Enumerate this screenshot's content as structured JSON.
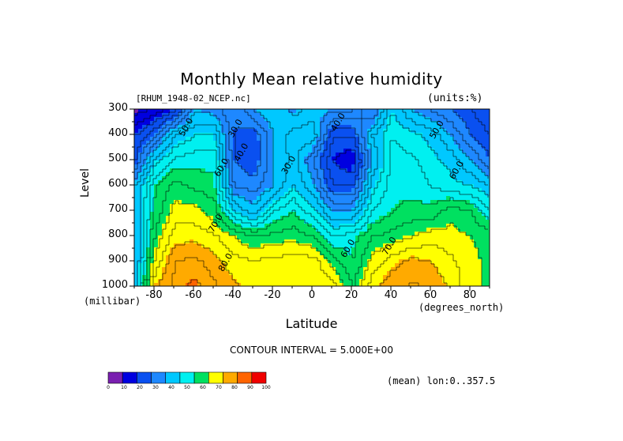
{
  "page": {
    "title": "Monthly Mean relative humidity",
    "file_tag": "[RHUM_1948-02_NCEP.nc]",
    "units_tag": "(units:%)",
    "contour_note": "CONTOUR INTERVAL = 5.000E+00",
    "mean_note": "(mean) lon:0..357.5"
  },
  "chart_data": {
    "type": "heatmap",
    "title": "Monthly Mean relative humidity",
    "xlabel": "Latitude",
    "x_units": "(degrees_north)",
    "ylabel": "Level",
    "y_units": "(millibar)",
    "xlim": [
      -90,
      90
    ],
    "ylim": [
      1000,
      300
    ],
    "x_ticks": [
      -80,
      -60,
      -40,
      -20,
      0,
      20,
      40,
      60,
      80
    ],
    "x_tick_labels": [
      "-80",
      "-60",
      "-40",
      "-20",
      "0",
      "20",
      "40",
      "60",
      "80"
    ],
    "y_ticks": [
      300,
      400,
      500,
      600,
      700,
      800,
      900,
      1000
    ],
    "y_tick_labels": [
      "300",
      "400",
      "500",
      "600",
      "700",
      "800",
      "900",
      "1000"
    ],
    "contour_interval": 5,
    "contour_labels": [
      {
        "text": "50.0",
        "x": -65,
        "y": 410
      },
      {
        "text": "30.0",
        "x": -40,
        "y": 415
      },
      {
        "text": "40.0",
        "x": -37,
        "y": 510
      },
      {
        "text": "60.0",
        "x": -47,
        "y": 570
      },
      {
        "text": "70.0",
        "x": -50,
        "y": 790
      },
      {
        "text": "80.0",
        "x": -45,
        "y": 945
      },
      {
        "text": "30.0",
        "x": -13,
        "y": 560
      },
      {
        "text": "40.0",
        "x": 12,
        "y": 390
      },
      {
        "text": "60.0",
        "x": 17,
        "y": 890
      },
      {
        "text": "70.0",
        "x": 38,
        "y": 880
      },
      {
        "text": "50.0",
        "x": 62,
        "y": 420
      },
      {
        "text": "60.0",
        "x": 72,
        "y": 580
      }
    ],
    "colorbar": {
      "levels": [
        0,
        10,
        20,
        30,
        40,
        50,
        60,
        70,
        80,
        90,
        100
      ],
      "labels": [
        "0",
        "10",
        "20",
        "30",
        "40",
        "50",
        "60",
        "70",
        "80",
        "90",
        "100"
      ],
      "colors": [
        "#7a1fb0",
        "#0000e0",
        "#0a50f0",
        "#1e88ff",
        "#00c8ff",
        "#00f0f0",
        "#00e060",
        "#ffff00",
        "#ffaa00",
        "#ff6400",
        "#f00000"
      ]
    },
    "levels_grid": [
      300,
      400,
      500,
      600,
      700,
      800,
      900,
      1000
    ],
    "lat_grid": [
      -90,
      -80,
      -70,
      -60,
      -50,
      -40,
      -30,
      -20,
      -10,
      0,
      10,
      20,
      30,
      40,
      50,
      60,
      70,
      80,
      90
    ],
    "values": [
      [
        8,
        12,
        20,
        40,
        38,
        30,
        40,
        45,
        38,
        43,
        40,
        40,
        30,
        50,
        40,
        35,
        30,
        25,
        20
      ],
      [
        20,
        30,
        45,
        50,
        50,
        30,
        26,
        40,
        48,
        48,
        25,
        25,
        45,
        55,
        52,
        48,
        40,
        30,
        25
      ],
      [
        25,
        48,
        57,
        58,
        58,
        30,
        25,
        40,
        47,
        35,
        20,
        15,
        40,
        57,
        56,
        52,
        48,
        40,
        30
      ],
      [
        40,
        60,
        67,
        64,
        62,
        35,
        33,
        40,
        50,
        42,
        25,
        25,
        48,
        58,
        58,
        55,
        52,
        50,
        45
      ],
      [
        40,
        62,
        72,
        72,
        67,
        50,
        42,
        55,
        60,
        52,
        40,
        40,
        55,
        60,
        62,
        62,
        68,
        65,
        55
      ],
      [
        40,
        66,
        78,
        78,
        76,
        70,
        65,
        67,
        68,
        65,
        55,
        58,
        65,
        67,
        70,
        73,
        72,
        70,
        68
      ],
      [
        40,
        72,
        85,
        87,
        82,
        77,
        76,
        77,
        78,
        78,
        68,
        60,
        72,
        78,
        82,
        80,
        76,
        72,
        68
      ],
      [
        45,
        80,
        87,
        92,
        86,
        81,
        79,
        80,
        79,
        80,
        78,
        65,
        78,
        84,
        86,
        84,
        79,
        70,
        70
      ]
    ]
  }
}
